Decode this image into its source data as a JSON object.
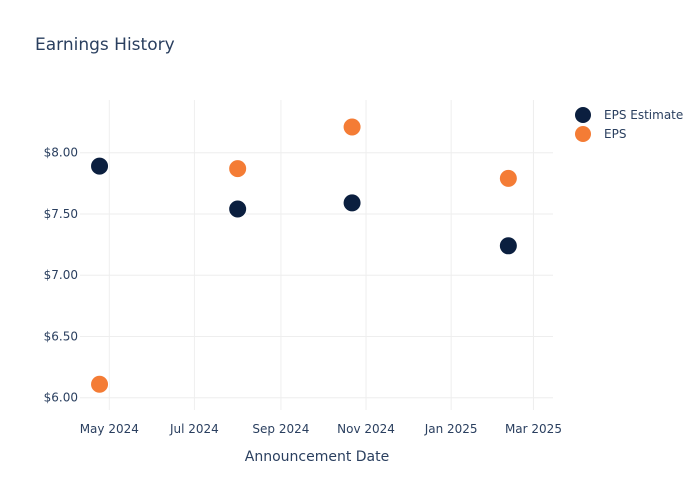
{
  "chart_data": {
    "type": "scatter",
    "title": "Earnings History",
    "xlabel": "Announcement Date",
    "ylabel": "",
    "x_ticks": [
      {
        "date": "2024-05-01",
        "label": "May 2024"
      },
      {
        "date": "2024-07-01",
        "label": "Jul 2024"
      },
      {
        "date": "2024-09-01",
        "label": "Sep 2024"
      },
      {
        "date": "2024-11-01",
        "label": "Nov 2024"
      },
      {
        "date": "2025-01-01",
        "label": "Jan 2025"
      },
      {
        "date": "2025-03-01",
        "label": "Mar 2025"
      }
    ],
    "y_ticks": [
      {
        "value": 6.0,
        "label": "$6.00"
      },
      {
        "value": 6.5,
        "label": "$6.50"
      },
      {
        "value": 7.0,
        "label": "$7.00"
      },
      {
        "value": 7.5,
        "label": "$7.50"
      },
      {
        "value": 8.0,
        "label": "$8.00"
      }
    ],
    "xlim": [
      "2024-04-10",
      "2025-03-15"
    ],
    "ylim": [
      5.9,
      8.43
    ],
    "grid": true,
    "legend_position": "top-right",
    "series": [
      {
        "name": "EPS Estimate",
        "color": "#0b1f3f",
        "points": [
          {
            "x": "2024-04-24",
            "y": 7.89
          },
          {
            "x": "2024-08-01",
            "y": 7.54
          },
          {
            "x": "2024-10-22",
            "y": 7.59
          },
          {
            "x": "2025-02-11",
            "y": 7.24
          }
        ]
      },
      {
        "name": "EPS",
        "color": "#f47c35",
        "points": [
          {
            "x": "2024-04-24",
            "y": 6.11
          },
          {
            "x": "2024-08-01",
            "y": 7.87
          },
          {
            "x": "2024-10-22",
            "y": 8.21
          },
          {
            "x": "2025-02-11",
            "y": 7.79
          }
        ]
      }
    ]
  }
}
